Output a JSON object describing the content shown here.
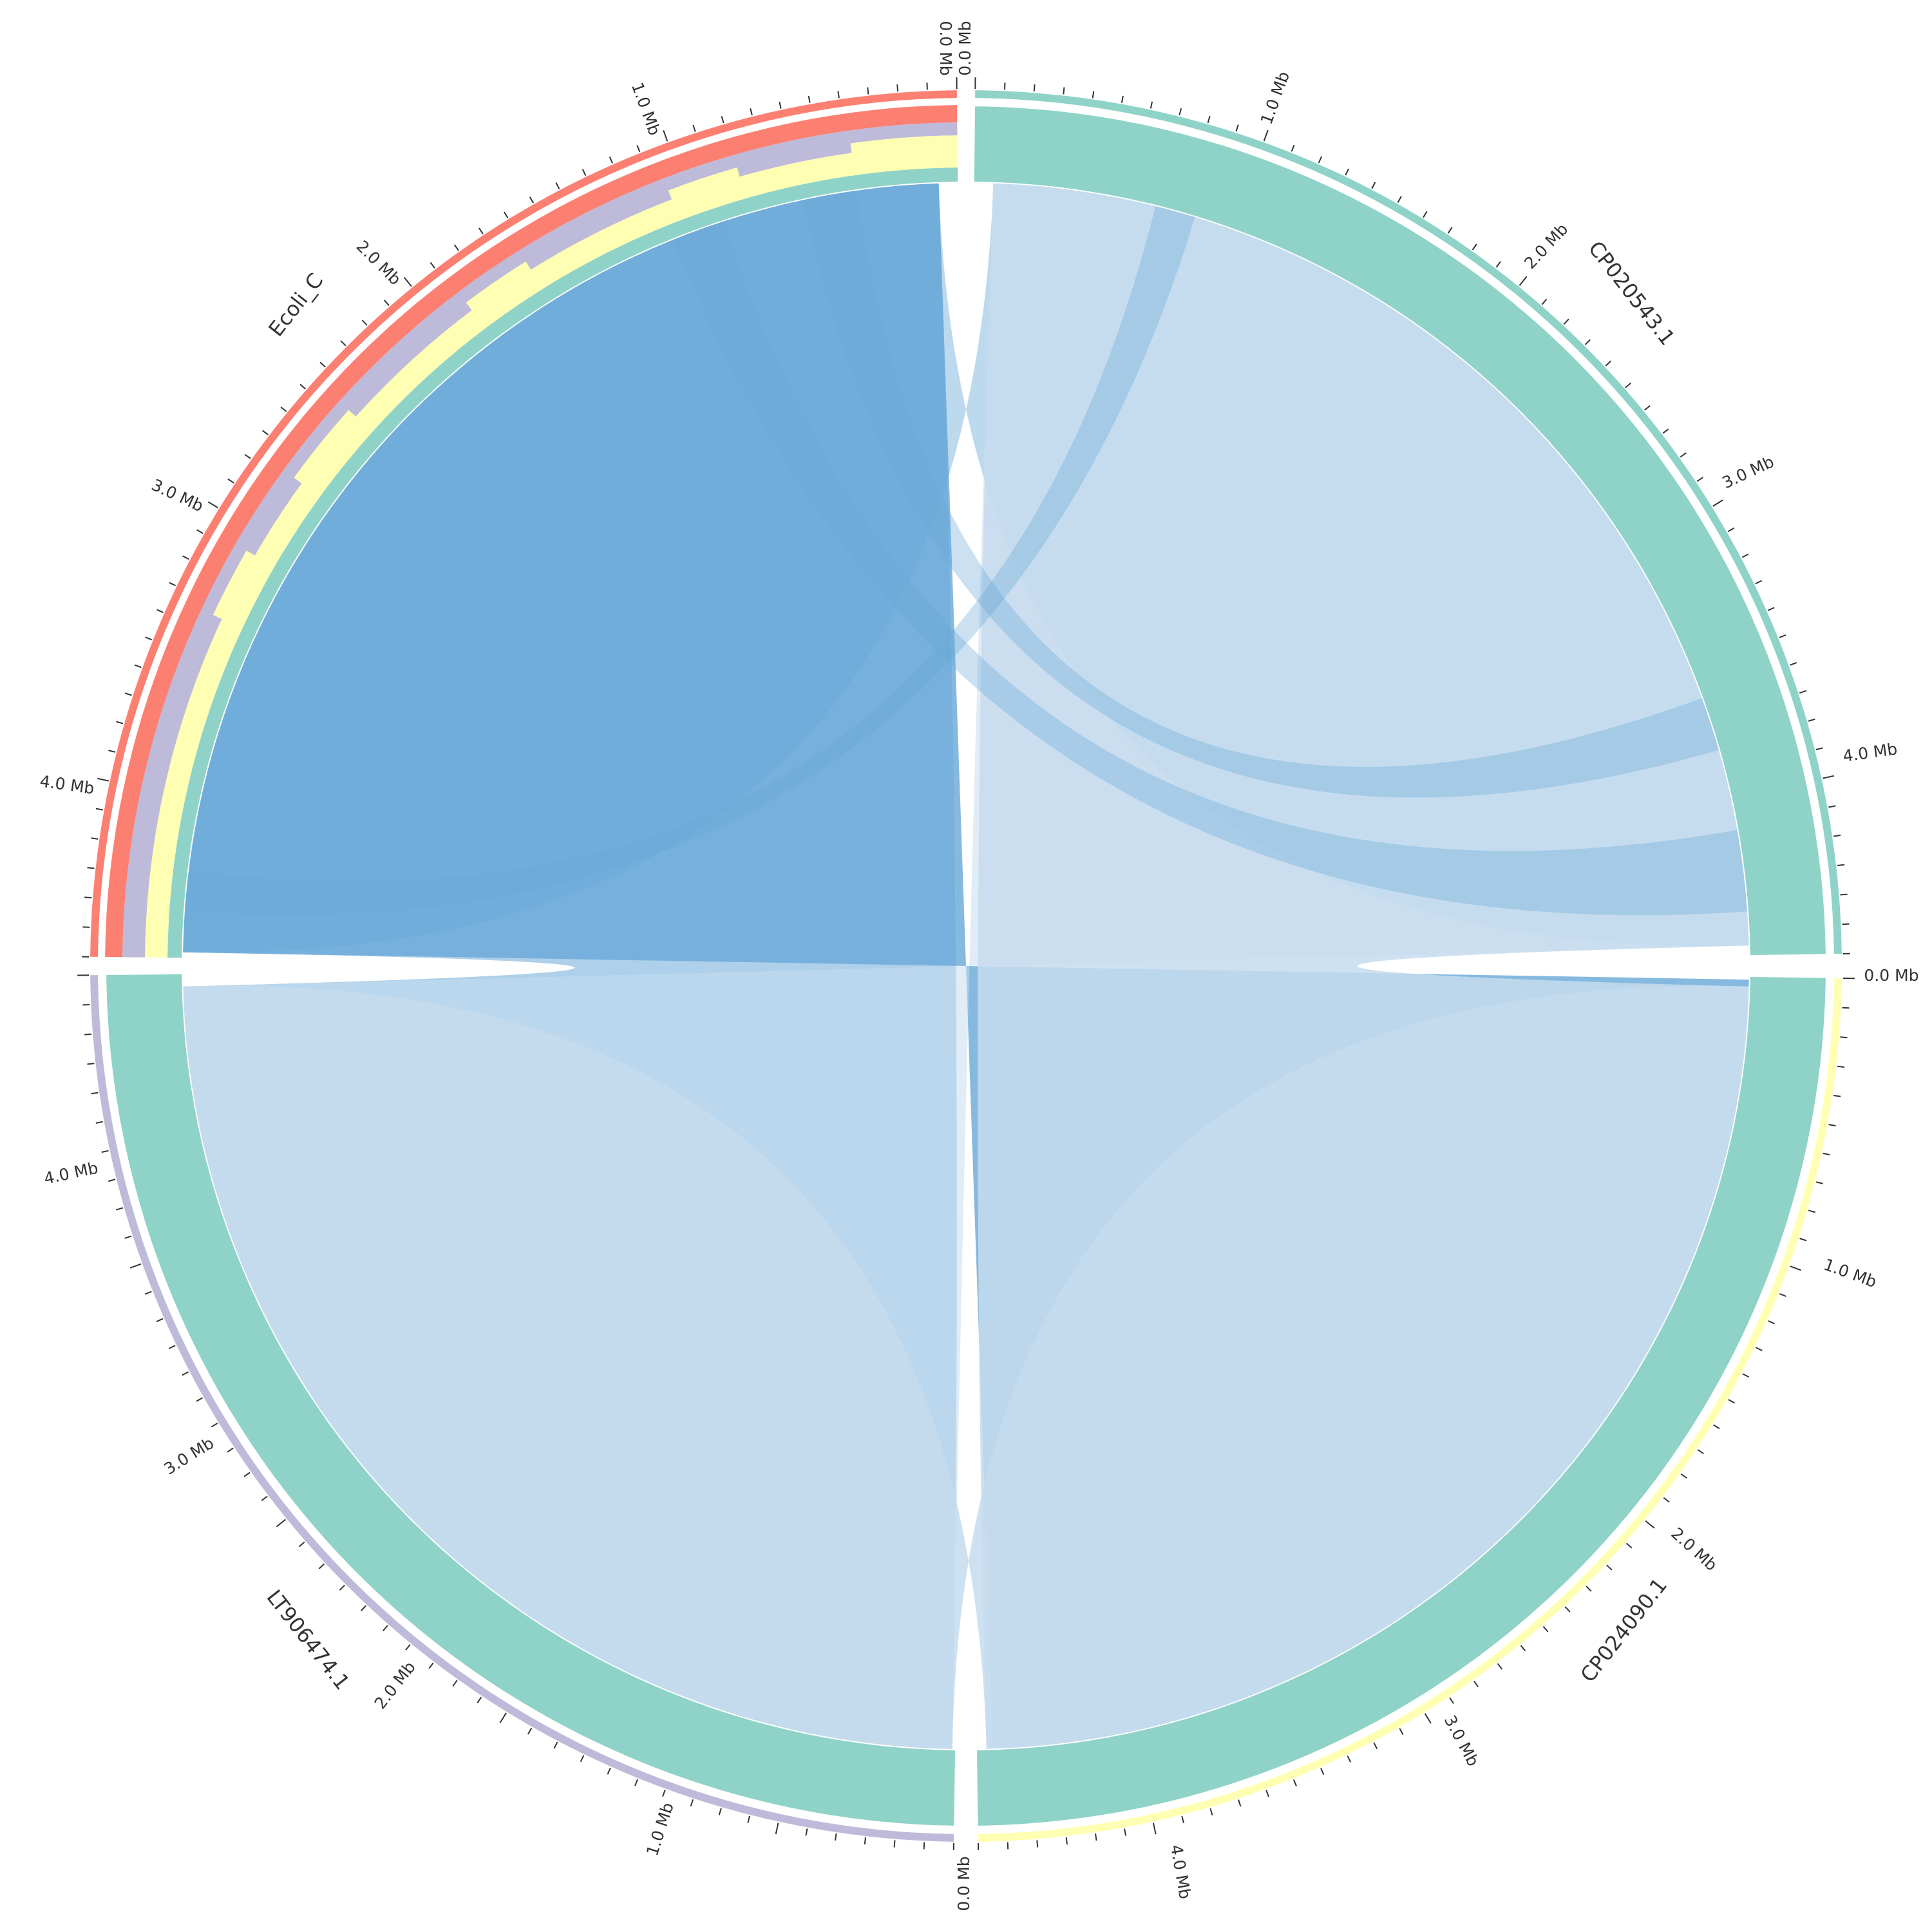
{
  "colors": {
    "teal": "#8fd3c8",
    "salmon": "#fb8072",
    "lavender": "#bebada",
    "yellow": "#ffffb3",
    "link_dark": "#6baad8",
    "link_light": "#c6dcef",
    "axis": "#333333"
  },
  "diagram": {
    "segments": [
      {
        "name": "Ecoli_C",
        "outer_color": "#fb8072",
        "length_mb": 4.6,
        "tick_labels": [
          "0.0 Mb",
          "1.0 Mb",
          "2.0 Mb",
          "3.0 Mb",
          "4.0 Mb"
        ],
        "tracks": [
          "lavender",
          "yellow",
          "teal"
        ]
      },
      {
        "name": "CP020543.1",
        "outer_color": "#8fd3c8",
        "length_mb": 4.6,
        "tick_labels": [
          "0.0 Mb",
          "1.0 Mb",
          "2.0 Mb",
          "3.0 Mb",
          "4.0 Mb"
        ],
        "tracks": [
          "teal"
        ]
      },
      {
        "name": "CP024090.1",
        "outer_color": "#ffffb3",
        "length_mb": 4.6,
        "tick_labels": [
          "0.0 Mb",
          "1.0 Mb",
          "2.0 Mb",
          "3.0 Mb",
          "4.0 Mb"
        ],
        "tracks": [
          "teal"
        ]
      },
      {
        "name": "LT906474.1",
        "outer_color": "#bebada",
        "length_mb": 4.6,
        "tick_labels": [
          "0.0 Mb",
          "1.0 Mb",
          "2.0 Mb",
          "3.0 Mb",
          "4.0 Mb"
        ],
        "tracks": [
          "teal"
        ]
      }
    ]
  }
}
